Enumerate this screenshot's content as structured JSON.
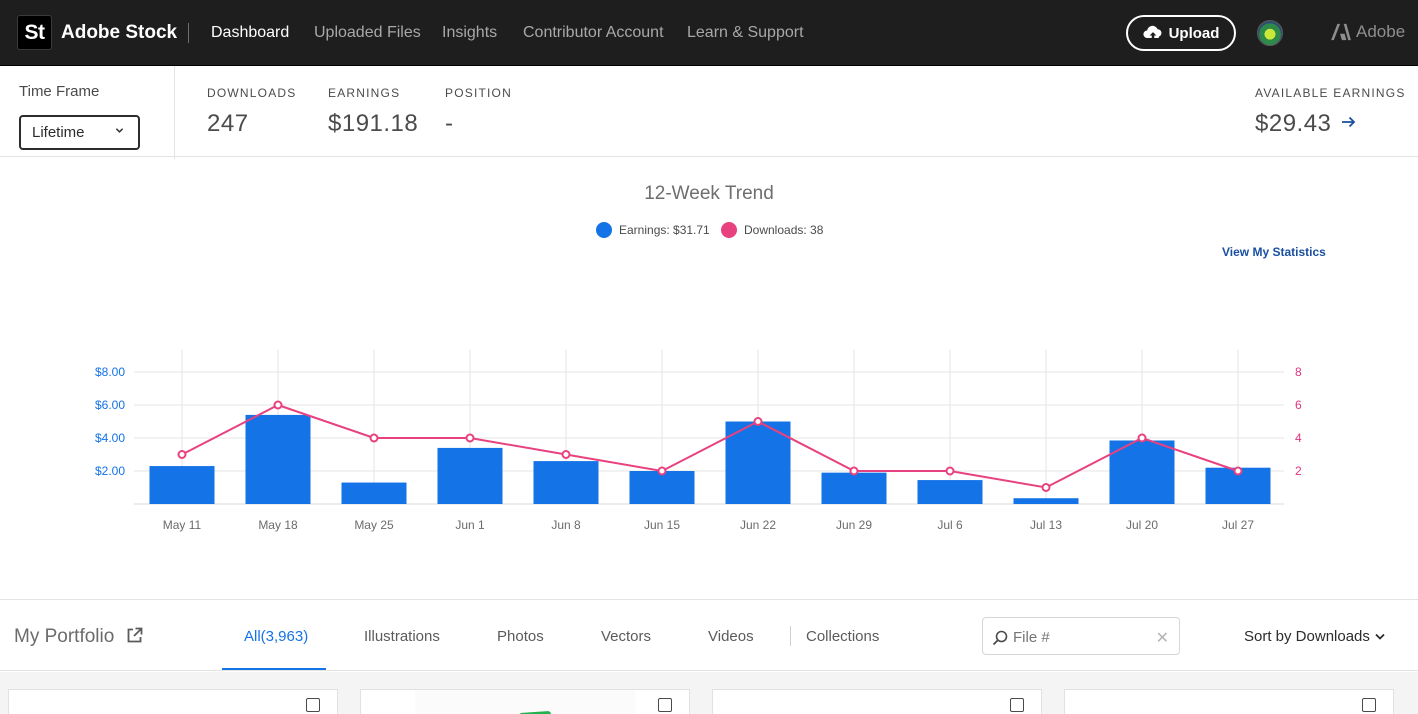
{
  "topbar": {
    "logo": "St",
    "brand": "Adobe Stock",
    "nav": [
      "Dashboard",
      "Uploaded Files",
      "Insights",
      "Contributor Account",
      "Learn & Support"
    ],
    "active_nav": "Dashboard",
    "upload_label": "Upload",
    "adobe_label": "Adobe"
  },
  "stats": {
    "timeframe_label": "Time Frame",
    "timeframe_value": "Lifetime",
    "downloads_label": "DOWNLOADS",
    "downloads_value": "247",
    "earnings_label": "EARNINGS",
    "earnings_value": "$191.18",
    "position_label": "POSITION",
    "position_value": "-",
    "available_label": "AVAILABLE EARNINGS",
    "available_value": "$29.43"
  },
  "chart": {
    "title": "12-Week Trend",
    "legend_earnings": "Earnings: $31.71",
    "legend_downloads": "Downloads: 38",
    "view_stats": "View My Statistics",
    "colors": {
      "earnings": "#1473e6",
      "downloads": "#e8417f"
    }
  },
  "chart_data": {
    "type": "bar",
    "title": "12-Week Trend",
    "categories": [
      "May 11",
      "May 18",
      "May 25",
      "Jun 1",
      "Jun 8",
      "Jun 15",
      "Jun 22",
      "Jun 29",
      "Jul 6",
      "Jul 13",
      "Jul 20",
      "Jul 27"
    ],
    "series": [
      {
        "name": "Earnings",
        "type": "bar",
        "axis": "left",
        "values": [
          2.3,
          5.4,
          1.3,
          3.4,
          2.6,
          2.0,
          5.0,
          1.9,
          1.45,
          0.35,
          3.85,
          2.2
        ]
      },
      {
        "name": "Downloads",
        "type": "line",
        "axis": "right",
        "values": [
          3,
          6,
          4,
          4,
          3,
          2,
          5,
          2,
          2,
          1,
          4,
          2
        ]
      }
    ],
    "y_left": {
      "ticks": [
        "$2.00",
        "$4.00",
        "$6.00",
        "$8.00"
      ],
      "tick_values": [
        2,
        4,
        6,
        8
      ],
      "range": [
        0,
        8
      ]
    },
    "y_right": {
      "ticks": [
        "2",
        "4",
        "6",
        "8"
      ],
      "tick_values": [
        2,
        4,
        6,
        8
      ],
      "range": [
        0,
        8
      ]
    },
    "grid": true,
    "legend_position": "top-center"
  },
  "portfolio": {
    "title": "My Portfolio",
    "tabs": [
      "All(3,963)",
      "Illustrations",
      "Photos",
      "Vectors",
      "Videos",
      "Collections"
    ],
    "active_tab": "All(3,963)",
    "search_placeholder": "File #",
    "sort_label": "Sort by Downloads"
  },
  "icons": {
    "upload": "cloud-upload-icon",
    "dropdown": "chevron-down-icon",
    "arrow": "arrow-right-icon",
    "external": "external-link-icon",
    "search": "search-icon",
    "clear": "close-icon",
    "checkbox": "checkbox-icon"
  }
}
